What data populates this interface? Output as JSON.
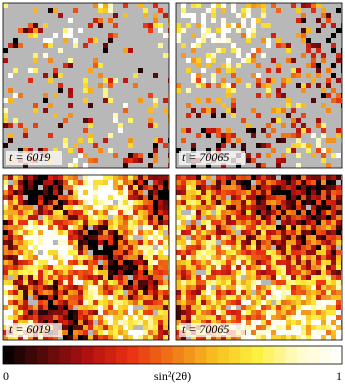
{
  "panels": [
    {
      "label": "t = 6019"
    },
    {
      "label": "t = 70065"
    },
    {
      "label": "t = 6019"
    },
    {
      "label": "t = 70065"
    }
  ],
  "colorbar": {
    "label": "sin²(2θ)",
    "lim": [
      0,
      1
    ],
    "ticks": [
      0,
      1
    ],
    "colors": [
      "#000000",
      "#5a0a0a",
      "#b01010",
      "#e83010",
      "#f07818",
      "#f8c020",
      "#fcf040",
      "#fffbd0",
      "#ffffff"
    ]
  }
}
